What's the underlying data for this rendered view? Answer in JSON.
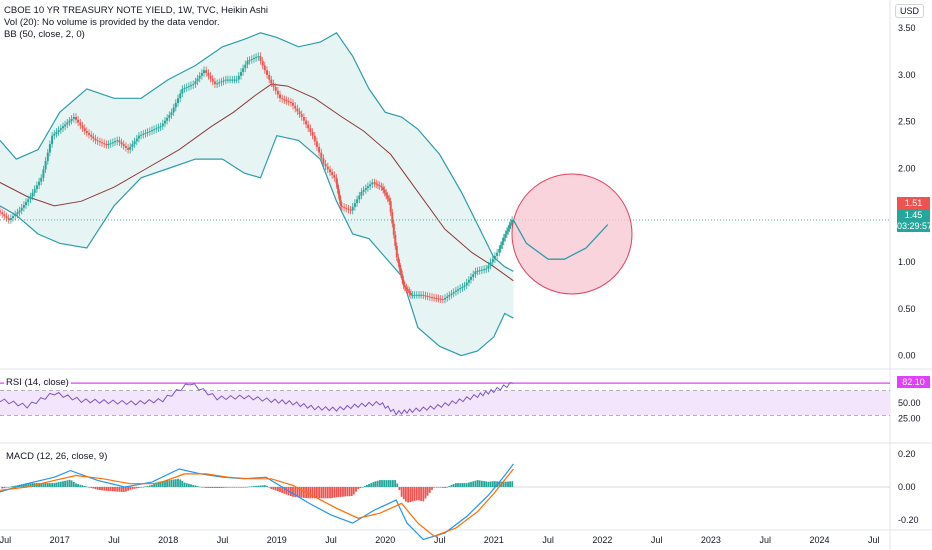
{
  "symbol_title": "CBOE 10 YR TREASURY NOTE YIELD, 1W, TVC, Heikin Ashi",
  "volume_note": "Vol (20): No volume is provided by the data vendor.",
  "bb_label": "BB (50, close, 2, 0)",
  "currency": "USD",
  "rsi_label": "RSI (14, close)",
  "macd_label": "MACD (12, 26, close, 9)",
  "price_tags": {
    "high": "1.51",
    "last": "1.45",
    "countdown": "03:29:57"
  },
  "rsi_tag": "82.10",
  "colors": {
    "up": "#26a69a",
    "down": "#ef5350",
    "bb": "#2e9da8",
    "bb_fill": "#e6f4f3",
    "basis": "#8d3a3a",
    "rsi": "#7e57c2",
    "rsi_band": "#f3e5fb",
    "macd": "#2196f3",
    "signal": "#ff6d00",
    "circle_fill": "#f8c6d2",
    "circle_stroke": "#e0405f",
    "highlight": "#e040fb"
  },
  "chart_data": {
    "type": "line",
    "price_axis": {
      "ticks": [
        "3.50",
        "3.00",
        "2.50",
        "2.00",
        "1.50",
        "1.00",
        "0.50",
        "0.00"
      ],
      "ylim": [
        -0.1,
        3.8
      ]
    },
    "rsi_axis": {
      "ticks": [
        "50.00",
        "25.00"
      ],
      "levels": [
        70,
        30
      ]
    },
    "macd_axis": {
      "ticks": [
        "0.20",
        "0.00",
        "-0.20"
      ]
    },
    "time_axis": {
      "ticks": [
        "Jul",
        "2017",
        "Jul",
        "2018",
        "Jul",
        "2019",
        "Jul",
        "2020",
        "Jul",
        "2021",
        "Jul",
        "2022",
        "Jul",
        "2023",
        "Jul",
        "2024",
        "Jul"
      ],
      "xlim": [
        2016.45,
        2024.65
      ]
    },
    "series": [
      {
        "x": [
          2016.45,
          2016.55,
          2016.65,
          2016.75,
          2016.85,
          2016.95,
          2017.05,
          2017.15,
          2017.25,
          2017.35,
          2017.45,
          2017.55,
          2017.65,
          2017.75,
          2017.85,
          2017.95,
          2018.05,
          2018.15,
          2018.25,
          2018.35,
          2018.45,
          2018.55,
          2018.65,
          2018.75,
          2018.85,
          2018.95,
          2019.05,
          2019.15,
          2019.25,
          2019.35,
          2019.45,
          2019.55,
          2019.6,
          2019.7,
          2019.8,
          2019.9,
          2019.98,
          2020.05,
          2020.12,
          2020.18,
          2020.25,
          2020.35,
          2020.45,
          2020.55,
          2020.65,
          2020.75,
          2020.85,
          2020.95,
          2021.05,
          2021.12,
          2021.18
        ],
        "y": [
          1.55,
          1.45,
          1.55,
          1.7,
          1.9,
          2.35,
          2.45,
          2.55,
          2.4,
          2.3,
          2.25,
          2.3,
          2.2,
          2.35,
          2.4,
          2.45,
          2.6,
          2.85,
          2.9,
          3.05,
          2.9,
          2.95,
          2.95,
          3.15,
          3.2,
          2.95,
          2.75,
          2.7,
          2.55,
          2.35,
          2.05,
          1.9,
          1.6,
          1.55,
          1.75,
          1.85,
          1.8,
          1.65,
          1.05,
          0.75,
          0.65,
          0.65,
          0.62,
          0.6,
          0.68,
          0.75,
          0.9,
          0.93,
          1.1,
          1.3,
          1.45
        ]
      },
      {
        "x": [
          2016.45,
          2016.7,
          2016.95,
          2017.2,
          2017.5,
          2017.8,
          2018.1,
          2018.4,
          2018.6,
          2018.8,
          2018.95,
          2019.1,
          2019.35,
          2019.6,
          2019.8,
          2020.05,
          2020.3,
          2020.55,
          2020.8,
          2021.0,
          2021.18
        ],
        "y": [
          1.85,
          1.7,
          1.6,
          1.65,
          1.8,
          2.0,
          2.2,
          2.45,
          2.6,
          2.78,
          2.9,
          2.88,
          2.75,
          2.55,
          2.4,
          2.15,
          1.75,
          1.35,
          1.1,
          0.95,
          0.8
        ]
      },
      {
        "x": [
          2016.45,
          2016.6,
          2016.8,
          2017.0,
          2017.25,
          2017.5,
          2017.75,
          2018.0,
          2018.25,
          2018.5,
          2018.7,
          2018.85,
          2019.0,
          2019.2,
          2019.4,
          2019.55,
          2019.7,
          2019.85,
          2020.0,
          2020.15,
          2020.3,
          2020.5,
          2020.7,
          2020.85,
          2021.0,
          2021.1,
          2021.18
        ],
        "y": [
          2.3,
          2.1,
          2.2,
          2.6,
          2.85,
          2.75,
          2.75,
          2.95,
          3.1,
          3.3,
          3.38,
          3.45,
          3.4,
          3.3,
          3.35,
          3.45,
          3.2,
          2.85,
          2.6,
          2.55,
          2.42,
          2.15,
          1.75,
          1.4,
          1.05,
          0.95,
          0.9
        ]
      },
      {
        "x": [
          2016.45,
          2016.6,
          2016.8,
          2017.0,
          2017.25,
          2017.5,
          2017.75,
          2018.0,
          2018.25,
          2018.5,
          2018.7,
          2018.85,
          2019.0,
          2019.2,
          2019.4,
          2019.55,
          2019.7,
          2019.85,
          2020.0,
          2020.15,
          2020.3,
          2020.5,
          2020.7,
          2020.85,
          2021.0,
          2021.1,
          2021.18
        ],
        "y": [
          1.6,
          1.5,
          1.3,
          1.2,
          1.15,
          1.6,
          1.9,
          2.0,
          2.1,
          2.1,
          1.95,
          1.9,
          2.35,
          2.3,
          2.1,
          1.65,
          1.3,
          1.25,
          1.05,
          0.85,
          0.3,
          0.1,
          0.0,
          0.05,
          0.2,
          0.45,
          0.4
        ]
      }
    ],
    "projection": {
      "x": [
        2021.18,
        2021.3,
        2021.5,
        2021.65,
        2021.85,
        2022.05
      ],
      "y": [
        1.45,
        1.2,
        1.03,
        1.03,
        1.15,
        1.4
      ]
    },
    "rsi": {
      "x": [
        2016.45,
        2016.7,
        2016.95,
        2017.2,
        2017.45,
        2017.7,
        2017.95,
        2018.2,
        2018.45,
        2018.7,
        2018.95,
        2019.15,
        2019.35,
        2019.55,
        2019.75,
        2019.95,
        2020.1,
        2020.25,
        2020.45,
        2020.65,
        2020.85,
        2021.0,
        2021.18
      ],
      "y": [
        55,
        45,
        66,
        54,
        52,
        50,
        55,
        82,
        58,
        60,
        54,
        50,
        42,
        40,
        46,
        50,
        34,
        38,
        43,
        52,
        62,
        70,
        82
      ]
    },
    "macd": {
      "x": [
        2016.45,
        2016.7,
        2016.95,
        2017.1,
        2017.35,
        2017.6,
        2017.85,
        2018.1,
        2018.3,
        2018.5,
        2018.7,
        2018.9,
        2019.1,
        2019.3,
        2019.5,
        2019.7,
        2019.9,
        2020.1,
        2020.2,
        2020.35,
        2020.55,
        2020.75,
        2020.95,
        2021.1,
        2021.18
      ],
      "y": [
        -0.03,
        0.02,
        0.06,
        0.1,
        0.04,
        0.0,
        0.03,
        0.11,
        0.08,
        0.06,
        0.05,
        0.06,
        -0.02,
        -0.1,
        -0.17,
        -0.22,
        -0.14,
        -0.08,
        -0.22,
        -0.32,
        -0.28,
        -0.18,
        -0.05,
        0.07,
        0.14
      ]
    },
    "signal": {
      "x": [
        2016.45,
        2016.7,
        2016.95,
        2017.15,
        2017.4,
        2017.65,
        2017.9,
        2018.15,
        2018.35,
        2018.55,
        2018.75,
        2018.95,
        2019.15,
        2019.35,
        2019.55,
        2019.75,
        2019.95,
        2020.15,
        2020.3,
        2020.45,
        2020.65,
        2020.85,
        2021.0,
        2021.18
      ],
      "y": [
        -0.02,
        0.0,
        0.04,
        0.07,
        0.05,
        0.02,
        0.02,
        0.08,
        0.08,
        0.06,
        0.05,
        0.05,
        0.01,
        -0.06,
        -0.13,
        -0.19,
        -0.16,
        -0.1,
        -0.22,
        -0.3,
        -0.25,
        -0.15,
        -0.04,
        0.11
      ]
    }
  }
}
